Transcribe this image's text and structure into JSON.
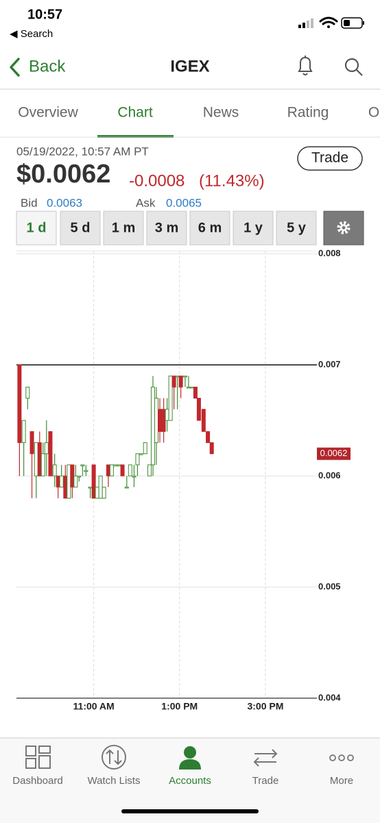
{
  "status_bar": {
    "time": "10:57",
    "back_app": "◀ Search"
  },
  "header": {
    "back": "Back",
    "title": "IGEX"
  },
  "tabs": [
    "Overview",
    "Chart",
    "News",
    "Rating",
    "O"
  ],
  "quote": {
    "timestamp": "05/19/2022, 10:57 AM PT",
    "price": "$0.0062",
    "change": "-0.0008",
    "change_pct": "(11.43%)",
    "trade": "Trade",
    "bid_label": "Bid",
    "bid": "0.0063",
    "ask_label": "Ask",
    "ask": "0.0065"
  },
  "ranges": [
    "1 d",
    "5 d",
    "1 m",
    "3 m",
    "6 m",
    "1 y",
    "5 y"
  ],
  "chart_data": {
    "type": "candlestick",
    "x": [
      9.27,
      9.37,
      9.46,
      9.56,
      9.66,
      9.74,
      9.82,
      9.9,
      9.99,
      10.09,
      10.17,
      10.25,
      10.34,
      10.42,
      10.5,
      10.58,
      10.66,
      10.74,
      10.82,
      10.92,
      11.0,
      11.08,
      11.16,
      11.24,
      11.34,
      11.42,
      11.5,
      11.59,
      11.67,
      11.77,
      11.85,
      11.94,
      12.02,
      12.1,
      12.2,
      12.3,
      12.38,
      12.46,
      12.54,
      12.63,
      12.71,
      12.79,
      12.87,
      12.95,
      13.03,
      13.13,
      13.21,
      13.29,
      13.37,
      13.45,
      13.56,
      13.66,
      13.75
    ],
    "open": [
      0.007,
      0.0063,
      0.0067,
      0.0064,
      0.006,
      0.0063,
      0.006,
      0.0062,
      0.0064,
      0.006,
      0.006,
      0.0059,
      0.006,
      0.0058,
      0.0061,
      0.0059,
      0.006,
      0.0061,
      0.00605,
      0.0059,
      0.0061,
      0.0058,
      0.0058,
      0.0058,
      0.0061,
      0.006,
      0.0061,
      0.0061,
      0.0061,
      0.0059,
      0.006,
      0.006,
      0.0061,
      0.0062,
      0.0062,
      0.006,
      0.0061,
      0.0063,
      0.0066,
      0.0066,
      0.0065,
      0.0065,
      0.0069,
      0.0069,
      0.0069,
      0.0069,
      0.0068,
      0.0068,
      0.0068,
      0.0067,
      0.0066,
      0.0064,
      0.0063
    ],
    "high": [
      0.007,
      0.0065,
      0.0068,
      0.0064,
      0.0063,
      0.0064,
      0.0063,
      0.0065,
      0.0064,
      0.0062,
      0.006,
      0.0061,
      0.0061,
      0.0061,
      0.0061,
      0.0061,
      0.006,
      0.0061,
      0.0061,
      0.0059,
      0.0061,
      0.0059,
      0.006,
      0.0059,
      0.0061,
      0.0061,
      0.0061,
      0.0061,
      0.0061,
      0.006,
      0.0061,
      0.0061,
      0.0062,
      0.0062,
      0.0063,
      0.0061,
      0.0069,
      0.0068,
      0.0067,
      0.0067,
      0.0067,
      0.0069,
      0.0069,
      0.0069,
      0.0069,
      0.0069,
      0.0069,
      0.0068,
      0.0068,
      0.0067,
      0.0066,
      0.0064,
      0.0063
    ],
    "low": [
      0.006,
      0.006,
      0.0066,
      0.0058,
      0.0058,
      0.006,
      0.006,
      0.006,
      0.006,
      0.0059,
      0.0058,
      0.0059,
      0.0058,
      0.0058,
      0.0058,
      0.0059,
      0.00595,
      0.006,
      0.006,
      0.0058,
      0.0058,
      0.0058,
      0.0058,
      0.0058,
      0.0059,
      0.006,
      0.0061,
      0.0061,
      0.006,
      0.0059,
      0.006,
      0.0059,
      0.006,
      0.0062,
      0.0062,
      0.006,
      0.006,
      0.0061,
      0.0063,
      0.0063,
      0.0064,
      0.0065,
      0.0066,
      0.0066,
      0.0067,
      0.0068,
      0.0068,
      0.0068,
      0.0067,
      0.0065,
      0.0064,
      0.0063,
      0.0062
    ],
    "close": [
      0.0063,
      0.0065,
      0.0068,
      0.0062,
      0.0063,
      0.006,
      0.0062,
      0.0063,
      0.006,
      0.0061,
      0.0059,
      0.006,
      0.0058,
      0.0061,
      0.0059,
      0.006,
      0.006,
      0.0061,
      0.00605,
      0.0059,
      0.0058,
      0.0059,
      0.006,
      0.0059,
      0.006,
      0.0061,
      0.0061,
      0.0061,
      0.006,
      0.0059,
      0.0061,
      0.006,
      0.0062,
      0.0062,
      0.0063,
      0.0061,
      0.0068,
      0.0067,
      0.0064,
      0.0064,
      0.0066,
      0.0069,
      0.0068,
      0.0069,
      0.0068,
      0.0069,
      0.0068,
      0.0068,
      0.0067,
      0.0065,
      0.0064,
      0.0063,
      0.0062
    ],
    "up_color": "#3d8b2f",
    "down_color": "#c0282d",
    "reference_line": 0.007,
    "last_price": 0.0062,
    "xlim": [
      9.2,
      16.2
    ],
    "xticks": [
      {
        "value": 11,
        "label": "11:00 AM"
      },
      {
        "value": 13,
        "label": "1:00 PM"
      },
      {
        "value": 15,
        "label": "3:00 PM"
      }
    ],
    "ylim": [
      0.004,
      0.008
    ],
    "yticks": [
      0.004,
      0.005,
      0.006,
      0.007,
      0.008
    ],
    "grid": true
  },
  "nav": [
    "Dashboard",
    "Watch Lists",
    "Accounts",
    "Trade",
    "More"
  ]
}
